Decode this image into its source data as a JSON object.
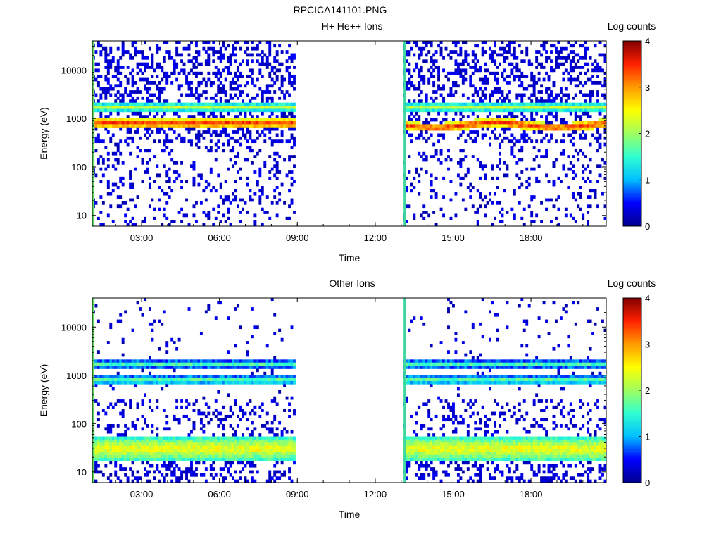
{
  "figure": {
    "title": "RPCICA141101.PNG"
  },
  "colorbar": {
    "label": "Log counts",
    "ticks": [
      "0",
      "1",
      "2",
      "3",
      "4"
    ],
    "colormap": [
      "#00008f",
      "#0000ff",
      "#00bfff",
      "#2fffd0",
      "#a0ff60",
      "#ffff00",
      "#ff9a00",
      "#ff2000",
      "#800000"
    ]
  },
  "chart_data": [
    {
      "type": "heatmap",
      "title": "H+ He++ Ions",
      "xlabel": "Time",
      "ylabel": "Energy (eV)",
      "x_ticks": [
        "03:00",
        "06:00",
        "09:00",
        "12:00",
        "15:00",
        "18:00"
      ],
      "x_tick_hours": [
        3,
        6,
        9,
        12,
        15,
        18
      ],
      "xlim_hours": [
        1.1,
        20.9
      ],
      "y_ticks": [
        "10",
        "100",
        "1000",
        "10000"
      ],
      "y_tick_values": [
        10,
        100,
        1000,
        10000
      ],
      "ylim": [
        6,
        40000
      ],
      "yscale": "log",
      "data_gaps_hours": [
        [
          8.95,
          13.1
        ]
      ],
      "bands": [
        {
          "energy_ev": 800,
          "log_counts": 3.5
        },
        {
          "energy_ev": 1700,
          "log_counts": 2.2
        }
      ],
      "color_range": [
        0,
        4
      ]
    },
    {
      "type": "heatmap",
      "title": "Other Ions",
      "xlabel": "Time",
      "ylabel": "Energy (eV)",
      "x_ticks": [
        "03:00",
        "06:00",
        "09:00",
        "12:00",
        "15:00",
        "18:00"
      ],
      "x_tick_hours": [
        3,
        6,
        9,
        12,
        15,
        18
      ],
      "xlim_hours": [
        1.1,
        20.9
      ],
      "y_ticks": [
        "10",
        "100",
        "1000",
        "10000"
      ],
      "y_tick_values": [
        10,
        100,
        1000,
        10000
      ],
      "ylim": [
        6,
        40000
      ],
      "yscale": "log",
      "data_gaps_hours": [
        [
          8.95,
          13.1
        ]
      ],
      "bands": [
        {
          "energy_ev": 800,
          "log_counts": 1.8
        },
        {
          "energy_ev": 1700,
          "log_counts": 1.6
        },
        {
          "energy_ev": 30,
          "log_counts": 2.5
        }
      ],
      "color_range": [
        0,
        4
      ]
    }
  ]
}
